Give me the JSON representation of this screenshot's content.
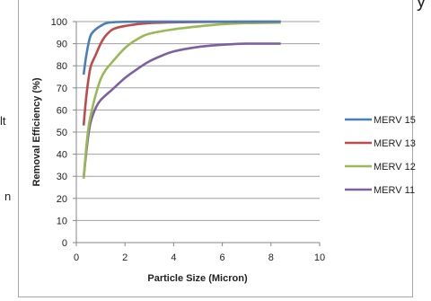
{
  "page": {
    "fragments": [
      "y",
      "lt",
      "n"
    ]
  },
  "chart_data": {
    "type": "line",
    "title": "",
    "xlabel": "Particle Size (Micron)",
    "ylabel": "Removal Efficiency (%)",
    "xlim": [
      0,
      10
    ],
    "ylim": [
      0,
      100
    ],
    "xticks": [
      0,
      2,
      4,
      6,
      8,
      10
    ],
    "yticks": [
      0,
      10,
      20,
      30,
      40,
      50,
      60,
      70,
      80,
      90,
      100
    ],
    "grid": "horizontal",
    "legend_position": "right",
    "series": [
      {
        "name": "MERV 15",
        "color": "#4a7ebb",
        "points": [
          [
            0.3,
            76
          ],
          [
            0.4,
            84
          ],
          [
            0.5,
            90
          ],
          [
            0.6,
            94
          ],
          [
            0.8,
            96.5
          ],
          [
            1.0,
            98
          ],
          [
            1.2,
            99.2
          ],
          [
            1.5,
            99.7
          ],
          [
            2,
            99.9
          ],
          [
            3,
            100
          ],
          [
            5,
            100
          ],
          [
            8.4,
            100
          ]
        ]
      },
      {
        "name": "MERV 13",
        "color": "#be4b48",
        "points": [
          [
            0.3,
            53
          ],
          [
            0.4,
            65
          ],
          [
            0.5,
            74
          ],
          [
            0.6,
            80
          ],
          [
            0.8,
            85
          ],
          [
            1.0,
            90
          ],
          [
            1.2,
            93.5
          ],
          [
            1.5,
            96.5
          ],
          [
            2,
            98
          ],
          [
            3,
            99.3
          ],
          [
            5,
            99.8
          ],
          [
            8.4,
            100
          ]
        ]
      },
      {
        "name": "MERV 12",
        "color": "#98b954",
        "points": [
          [
            0.3,
            29
          ],
          [
            0.4,
            42
          ],
          [
            0.5,
            52
          ],
          [
            0.6,
            58
          ],
          [
            0.8,
            67
          ],
          [
            1.0,
            74
          ],
          [
            1.2,
            78
          ],
          [
            1.5,
            82
          ],
          [
            2,
            88
          ],
          [
            2.5,
            92
          ],
          [
            3,
            94.5
          ],
          [
            4,
            96.5
          ],
          [
            5,
            97.8
          ],
          [
            6,
            98.8
          ],
          [
            7,
            99.3
          ],
          [
            8.4,
            99.5
          ]
        ]
      },
      {
        "name": "MERV 11",
        "color": "#7d60a0",
        "points": [
          [
            0.3,
            29
          ],
          [
            0.4,
            40
          ],
          [
            0.5,
            49
          ],
          [
            0.6,
            55
          ],
          [
            0.8,
            61
          ],
          [
            1.0,
            64.5
          ],
          [
            1.5,
            69.5
          ],
          [
            2,
            74.5
          ],
          [
            2.5,
            78.5
          ],
          [
            3,
            82
          ],
          [
            3.5,
            84.5
          ],
          [
            4,
            86.5
          ],
          [
            5,
            88.5
          ],
          [
            6,
            89.5
          ],
          [
            7,
            90
          ],
          [
            8.4,
            90
          ]
        ]
      }
    ]
  }
}
